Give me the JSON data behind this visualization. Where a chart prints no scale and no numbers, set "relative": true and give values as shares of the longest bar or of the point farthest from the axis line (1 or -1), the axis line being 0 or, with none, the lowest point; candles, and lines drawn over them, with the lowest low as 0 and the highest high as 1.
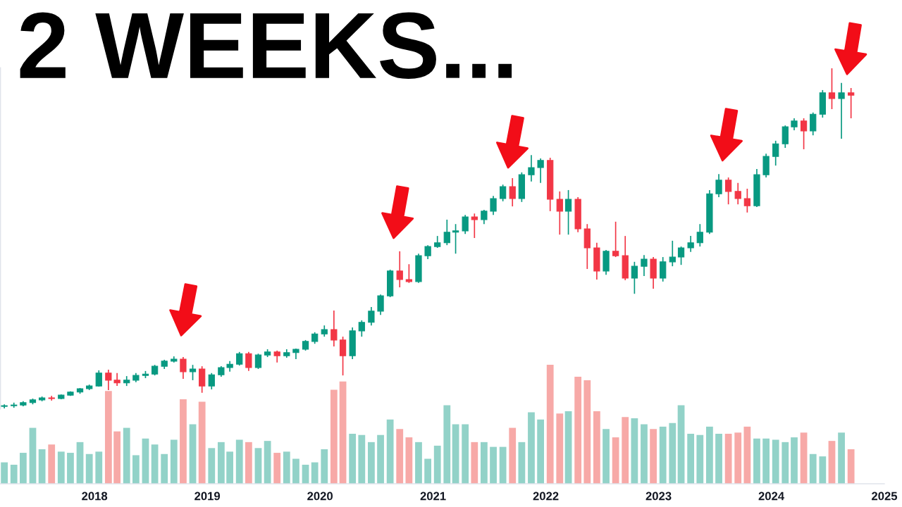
{
  "chart_data": [
    {
      "type": "candlestick",
      "title": "2 WEEKS...",
      "relative": true,
      "tick_labels": false,
      "xlim": [
        "2017-03-01",
        "2025-01-01"
      ],
      "x": [
        "2017-03-15",
        "2017-04-15",
        "2017-05-15",
        "2017-06-15",
        "2017-07-15",
        "2017-08-15",
        "2017-09-15",
        "2017-10-15",
        "2017-11-15",
        "2017-12-15",
        "2018-01-15",
        "2018-02-15",
        "2018-03-15",
        "2018-04-15",
        "2018-05-15",
        "2018-06-15",
        "2018-07-15",
        "2018-08-15",
        "2018-09-15",
        "2018-10-15",
        "2018-11-15",
        "2018-12-15",
        "2019-01-15",
        "2019-02-15",
        "2019-03-15",
        "2019-04-15",
        "2019-05-15",
        "2019-06-15",
        "2019-07-15",
        "2019-08-15",
        "2019-09-15",
        "2019-10-15",
        "2019-11-15",
        "2019-12-15",
        "2020-01-15",
        "2020-02-15",
        "2020-03-15",
        "2020-04-15",
        "2020-05-15",
        "2020-06-15",
        "2020-07-15",
        "2020-08-15",
        "2020-09-15",
        "2020-10-15",
        "2020-11-15",
        "2020-12-15",
        "2021-01-15",
        "2021-02-15",
        "2021-03-15",
        "2021-04-15",
        "2021-05-15",
        "2021-06-15",
        "2021-07-15",
        "2021-08-15",
        "2021-09-15",
        "2021-10-15",
        "2021-11-15",
        "2021-12-15",
        "2022-01-15",
        "2022-02-15",
        "2022-03-15",
        "2022-04-15",
        "2022-05-15",
        "2022-06-15",
        "2022-07-15",
        "2022-08-15",
        "2022-09-15",
        "2022-10-15",
        "2022-11-15",
        "2022-12-15",
        "2023-01-15",
        "2023-02-15",
        "2023-03-15",
        "2023-04-15",
        "2023-05-15",
        "2023-06-15",
        "2023-07-15",
        "2023-08-15",
        "2023-09-15",
        "2023-10-15",
        "2023-11-15",
        "2023-12-15",
        "2024-01-15",
        "2024-02-15",
        "2024-03-15",
        "2024-04-15",
        "2024-05-15",
        "2024-06-15",
        "2024-07-15",
        "2024-08-15",
        "2024-09-15"
      ],
      "ohlc": [
        [
          0.006,
          0.012,
          0,
          0.008
        ],
        [
          0.008,
          0.017,
          0.002,
          0.01
        ],
        [
          0.01,
          0.021,
          0.006,
          0.017
        ],
        [
          0.017,
          0.029,
          0.012,
          0.025
        ],
        [
          0.025,
          0.035,
          0.021,
          0.031
        ],
        [
          0.031,
          0.037,
          0.023,
          0.029
        ],
        [
          0.029,
          0.041,
          0.027,
          0.039
        ],
        [
          0.039,
          0.05,
          0.037,
          0.048
        ],
        [
          0.048,
          0.06,
          0.043,
          0.058
        ],
        [
          0.058,
          0.07,
          0.054,
          0.066
        ],
        [
          0.066,
          0.112,
          0.064,
          0.104
        ],
        [
          0.104,
          0.114,
          0.054,
          0.083
        ],
        [
          0.083,
          0.104,
          0.066,
          0.075
        ],
        [
          0.075,
          0.095,
          0.066,
          0.083
        ],
        [
          0.083,
          0.104,
          0.077,
          0.097
        ],
        [
          0.097,
          0.11,
          0.089,
          0.101
        ],
        [
          0.101,
          0.128,
          0.097,
          0.124
        ],
        [
          0.124,
          0.143,
          0.116,
          0.139
        ],
        [
          0.139,
          0.153,
          0.135,
          0.145
        ],
        [
          0.145,
          0.151,
          0.087,
          0.108
        ],
        [
          0.108,
          0.128,
          0.083,
          0.116
        ],
        [
          0.116,
          0.124,
          0.046,
          0.066
        ],
        [
          0.066,
          0.104,
          0.056,
          0.099
        ],
        [
          0.099,
          0.124,
          0.093,
          0.12
        ],
        [
          0.12,
          0.139,
          0.108,
          0.13
        ],
        [
          0.13,
          0.166,
          0.126,
          0.161
        ],
        [
          0.161,
          0.166,
          0.11,
          0.12
        ],
        [
          0.12,
          0.161,
          0.116,
          0.157
        ],
        [
          0.157,
          0.174,
          0.151,
          0.166
        ],
        [
          0.166,
          0.17,
          0.135,
          0.155
        ],
        [
          0.155,
          0.174,
          0.149,
          0.164
        ],
        [
          0.164,
          0.176,
          0.145,
          0.174
        ],
        [
          0.174,
          0.201,
          0.17,
          0.197
        ],
        [
          0.197,
          0.224,
          0.19,
          0.219
        ],
        [
          0.219,
          0.244,
          0.211,
          0.232
        ],
        [
          0.232,
          0.288,
          0.182,
          0.201
        ],
        [
          0.201,
          0.211,
          0.097,
          0.155
        ],
        [
          0.155,
          0.238,
          0.145,
          0.228
        ],
        [
          0.228,
          0.259,
          0.211,
          0.253
        ],
        [
          0.253,
          0.298,
          0.244,
          0.286
        ],
        [
          0.286,
          0.335,
          0.275,
          0.331
        ],
        [
          0.331,
          0.408,
          0.327,
          0.404
        ],
        [
          0.404,
          0.462,
          0.356,
          0.379
        ],
        [
          0.379,
          0.424,
          0.369,
          0.373
        ],
        [
          0.373,
          0.455,
          0.369,
          0.449
        ],
        [
          0.449,
          0.48,
          0.439,
          0.476
        ],
        [
          0.476,
          0.507,
          0.472,
          0.487
        ],
        [
          0.487,
          0.555,
          0.48,
          0.518
        ],
        [
          0.518,
          0.542,
          0.455,
          0.522
        ],
        [
          0.522,
          0.569,
          0.513,
          0.563
        ],
        [
          0.563,
          0.573,
          0.501,
          0.555
        ],
        [
          0.555,
          0.584,
          0.542,
          0.58
        ],
        [
          0.58,
          0.625,
          0.569,
          0.617
        ],
        [
          0.617,
          0.658,
          0.609,
          0.652
        ],
        [
          0.652,
          0.677,
          0.594,
          0.617
        ],
        [
          0.617,
          0.694,
          0.607,
          0.687
        ],
        [
          0.687,
          0.745,
          0.667,
          0.708
        ],
        [
          0.708,
          0.735,
          0.663,
          0.729
        ],
        [
          0.729,
          0.737,
          0.58,
          0.615
        ],
        [
          0.615,
          0.638,
          0.511,
          0.58
        ],
        [
          0.58,
          0.642,
          0.511,
          0.615
        ],
        [
          0.615,
          0.621,
          0.518,
          0.528
        ],
        [
          0.528,
          0.542,
          0.41,
          0.472
        ],
        [
          0.472,
          0.487,
          0.379,
          0.404
        ],
        [
          0.404,
          0.466,
          0.393,
          0.462
        ],
        [
          0.462,
          0.549,
          0.445,
          0.449
        ],
        [
          0.449,
          0.507,
          0.377,
          0.383
        ],
        [
          0.383,
          0.431,
          0.337,
          0.418
        ],
        [
          0.418,
          0.451,
          0.389,
          0.439
        ],
        [
          0.439,
          0.445,
          0.352,
          0.383
        ],
        [
          0.383,
          0.445,
          0.373,
          0.431
        ],
        [
          0.431,
          0.493,
          0.418,
          0.445
        ],
        [
          0.445,
          0.476,
          0.422,
          0.472
        ],
        [
          0.472,
          0.507,
          0.46,
          0.487
        ],
        [
          0.487,
          0.542,
          0.476,
          0.518
        ],
        [
          0.518,
          0.642,
          0.513,
          0.631
        ],
        [
          0.631,
          0.689,
          0.621,
          0.671
        ],
        [
          0.671,
          0.679,
          0.6,
          0.638
        ],
        [
          0.638,
          0.663,
          0.6,
          0.617
        ],
        [
          0.617,
          0.646,
          0.576,
          0.596
        ],
        [
          0.596,
          0.704,
          0.592,
          0.687
        ],
        [
          0.687,
          0.749,
          0.679,
          0.741
        ],
        [
          0.741,
          0.787,
          0.714,
          0.778
        ],
        [
          0.778,
          0.832,
          0.766,
          0.828
        ],
        [
          0.828,
          0.853,
          0.818,
          0.845
        ],
        [
          0.845,
          0.853,
          0.762,
          0.816
        ],
        [
          0.816,
          0.87,
          0.803,
          0.865
        ],
        [
          0.865,
          0.936,
          0.855,
          0.928
        ],
        [
          0.928,
          1,
          0.88,
          0.911
        ],
        [
          0.911,
          0.957,
          0.793,
          0.928
        ],
        [
          0.928,
          0.942,
          0.853,
          0.921
        ]
      ],
      "colors": [
        "#089981",
        "#089981",
        "#089981",
        "#089981",
        "#089981",
        "#f23645",
        "#089981",
        "#089981",
        "#089981",
        "#089981",
        "#089981",
        "#f23645",
        "#f23645",
        "#089981",
        "#089981",
        "#089981",
        "#089981",
        "#089981",
        "#089981",
        "#f23645",
        "#089981",
        "#f23645",
        "#089981",
        "#089981",
        "#089981",
        "#089981",
        "#f23645",
        "#089981",
        "#089981",
        "#f23645",
        "#089981",
        "#089981",
        "#089981",
        "#089981",
        "#089981",
        "#f23645",
        "#f23645",
        "#089981",
        "#089981",
        "#089981",
        "#089981",
        "#089981",
        "#f23645",
        "#f23645",
        "#089981",
        "#089981",
        "#089981",
        "#089981",
        "#089981",
        "#089981",
        "#f23645",
        "#089981",
        "#089981",
        "#089981",
        "#f23645",
        "#089981",
        "#089981",
        "#089981",
        "#f23645",
        "#f23645",
        "#089981",
        "#f23645",
        "#f23645",
        "#f23645",
        "#089981",
        "#f23645",
        "#f23645",
        "#089981",
        "#089981",
        "#f23645",
        "#089981",
        "#089981",
        "#089981",
        "#089981",
        "#089981",
        "#089981",
        "#089981",
        "#f23645",
        "#f23645",
        "#f23645",
        "#089981",
        "#089981",
        "#089981",
        "#089981",
        "#089981",
        "#f23645",
        "#089981",
        "#089981",
        "#f23645",
        "#089981",
        "#f23645"
      ]
    },
    {
      "type": "bar",
      "relative": true,
      "tick_labels": "x",
      "xlim": [
        "2017-03-01",
        "2025-01-01"
      ],
      "xticks": [
        "2018",
        "2019",
        "2020",
        "2021",
        "2022",
        "2023",
        "2024",
        "2025"
      ],
      "x": [
        "2017-03-15",
        "2017-04-15",
        "2017-05-15",
        "2017-06-15",
        "2017-07-15",
        "2017-08-15",
        "2017-09-15",
        "2017-10-15",
        "2017-11-15",
        "2017-12-15",
        "2018-01-15",
        "2018-02-15",
        "2018-03-15",
        "2018-04-15",
        "2018-05-15",
        "2018-06-15",
        "2018-07-15",
        "2018-08-15",
        "2018-09-15",
        "2018-10-15",
        "2018-11-15",
        "2018-12-15",
        "2019-01-15",
        "2019-02-15",
        "2019-03-15",
        "2019-04-15",
        "2019-05-15",
        "2019-06-15",
        "2019-07-15",
        "2019-08-15",
        "2019-09-15",
        "2019-10-15",
        "2019-11-15",
        "2019-12-15",
        "2020-01-15",
        "2020-02-15",
        "2020-03-15",
        "2020-04-15",
        "2020-05-15",
        "2020-06-15",
        "2020-07-15",
        "2020-08-15",
        "2020-09-15",
        "2020-10-15",
        "2020-11-15",
        "2020-12-15",
        "2021-01-15",
        "2021-02-15",
        "2021-03-15",
        "2021-04-15",
        "2021-05-15",
        "2021-06-15",
        "2021-07-15",
        "2021-08-15",
        "2021-09-15",
        "2021-10-15",
        "2021-11-15",
        "2021-12-15",
        "2022-01-15",
        "2022-02-15",
        "2022-03-15",
        "2022-04-15",
        "2022-05-15",
        "2022-06-15",
        "2022-07-15",
        "2022-08-15",
        "2022-09-15",
        "2022-10-15",
        "2022-11-15",
        "2022-12-15",
        "2023-01-15",
        "2023-02-15",
        "2023-03-15",
        "2023-04-15",
        "2023-05-15",
        "2023-06-15",
        "2023-07-15",
        "2023-08-15",
        "2023-09-15",
        "2023-10-15",
        "2023-11-15",
        "2023-12-15",
        "2024-01-15",
        "2024-02-15",
        "2024-03-15",
        "2024-04-15",
        "2024-05-15",
        "2024-06-15",
        "2024-07-15",
        "2024-08-15",
        "2024-09-15"
      ],
      "values": [
        0.18,
        0.16,
        0.26,
        0.47,
        0.29,
        0.33,
        0.27,
        0.26,
        0.35,
        0.25,
        0.27,
        0.78,
        0.44,
        0.47,
        0.24,
        0.38,
        0.33,
        0.25,
        0.37,
        0.71,
        0.5,
        0.69,
        0.3,
        0.35,
        0.27,
        0.37,
        0.35,
        0.3,
        0.36,
        0.26,
        0.27,
        0.21,
        0.16,
        0.18,
        0.29,
        0.79,
        0.86,
        0.42,
        0.41,
        0.35,
        0.41,
        0.54,
        0.46,
        0.39,
        0.35,
        0.21,
        0.32,
        0.66,
        0.5,
        0.5,
        0.35,
        0.35,
        0.31,
        0.31,
        0.47,
        0.35,
        0.6,
        0.54,
        1,
        0.59,
        0.61,
        0.9,
        0.87,
        0.61,
        0.46,
        0.39,
        0.56,
        0.55,
        0.5,
        0.46,
        0.48,
        0.51,
        0.66,
        0.42,
        0.41,
        0.48,
        0.42,
        0.42,
        0.43,
        0.48,
        0.38,
        0.38,
        0.37,
        0.35,
        0.39,
        0.43,
        0.25,
        0.23,
        0.36,
        0.43,
        0.29
      ],
      "colors": [
        "#92d2c8",
        "#92d2c8",
        "#92d2c8",
        "#92d2c8",
        "#92d2c8",
        "#f7a9a7",
        "#92d2c8",
        "#92d2c8",
        "#92d2c8",
        "#92d2c8",
        "#92d2c8",
        "#f7a9a7",
        "#f7a9a7",
        "#92d2c8",
        "#92d2c8",
        "#92d2c8",
        "#92d2c8",
        "#92d2c8",
        "#92d2c8",
        "#f7a9a7",
        "#92d2c8",
        "#f7a9a7",
        "#92d2c8",
        "#92d2c8",
        "#92d2c8",
        "#92d2c8",
        "#f7a9a7",
        "#92d2c8",
        "#92d2c8",
        "#f7a9a7",
        "#92d2c8",
        "#92d2c8",
        "#92d2c8",
        "#92d2c8",
        "#92d2c8",
        "#f7a9a7",
        "#f7a9a7",
        "#92d2c8",
        "#92d2c8",
        "#92d2c8",
        "#92d2c8",
        "#92d2c8",
        "#f7a9a7",
        "#f7a9a7",
        "#92d2c8",
        "#92d2c8",
        "#92d2c8",
        "#92d2c8",
        "#92d2c8",
        "#92d2c8",
        "#f7a9a7",
        "#92d2c8",
        "#92d2c8",
        "#92d2c8",
        "#f7a9a7",
        "#92d2c8",
        "#92d2c8",
        "#92d2c8",
        "#f7a9a7",
        "#f7a9a7",
        "#92d2c8",
        "#f7a9a7",
        "#f7a9a7",
        "#f7a9a7",
        "#92d2c8",
        "#f7a9a7",
        "#f7a9a7",
        "#92d2c8",
        "#92d2c8",
        "#f7a9a7",
        "#92d2c8",
        "#92d2c8",
        "#92d2c8",
        "#92d2c8",
        "#92d2c8",
        "#92d2c8",
        "#92d2c8",
        "#f7a9a7",
        "#f7a9a7",
        "#f7a9a7",
        "#92d2c8",
        "#92d2c8",
        "#92d2c8",
        "#92d2c8",
        "#92d2c8",
        "#f7a9a7",
        "#92d2c8",
        "#92d2c8",
        "#f7a9a7",
        "#92d2c8",
        "#f7a9a7"
      ]
    }
  ]
}
